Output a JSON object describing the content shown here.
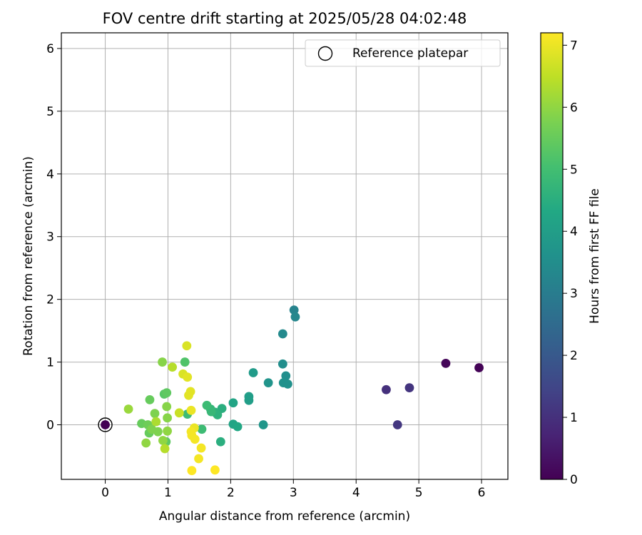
{
  "chart_data": {
    "type": "scatter",
    "title": "FOV centre drift starting at 2025/05/28 04:02:48",
    "xlabel": "Angular distance from reference (arcmin)",
    "ylabel": "Rotation from reference (arcmin)",
    "xlim": [
      -0.7,
      6.42
    ],
    "ylim": [
      -0.87,
      6.25
    ],
    "xticks": [
      0,
      1,
      2,
      3,
      4,
      5,
      6
    ],
    "yticks": [
      0,
      1,
      2,
      3,
      4,
      5,
      6
    ],
    "grid": true,
    "legend": {
      "position": "top-right",
      "entries": [
        "Reference platepar"
      ]
    },
    "reference_point": {
      "x": 0,
      "y": 0
    },
    "colorbar": {
      "label": "Hours from first FF file",
      "range": [
        0,
        7.2
      ],
      "ticks": [
        0,
        1,
        2,
        3,
        4,
        5,
        6,
        7
      ],
      "colormap": "viridis"
    },
    "points": [
      {
        "x": 0.0,
        "y": 0.0,
        "h": 0.0
      },
      {
        "x": 5.43,
        "y": 0.98,
        "h": 0.1
      },
      {
        "x": 5.96,
        "y": 0.91,
        "h": 0.05
      },
      {
        "x": 4.85,
        "y": 0.59,
        "h": 1.1
      },
      {
        "x": 4.48,
        "y": 0.56,
        "h": 1.0
      },
      {
        "x": 4.66,
        "y": 0.0,
        "h": 1.15
      },
      {
        "x": 3.01,
        "y": 1.83,
        "h": 3.2
      },
      {
        "x": 3.03,
        "y": 1.72,
        "h": 3.3
      },
      {
        "x": 2.83,
        "y": 1.45,
        "h": 3.4
      },
      {
        "x": 2.83,
        "y": 0.97,
        "h": 3.5
      },
      {
        "x": 2.88,
        "y": 0.78,
        "h": 3.5
      },
      {
        "x": 2.84,
        "y": 0.67,
        "h": 3.6
      },
      {
        "x": 2.91,
        "y": 0.65,
        "h": 3.6
      },
      {
        "x": 2.6,
        "y": 0.67,
        "h": 3.7
      },
      {
        "x": 2.52,
        "y": 0.0,
        "h": 3.75
      },
      {
        "x": 2.36,
        "y": 0.83,
        "h": 3.9
      },
      {
        "x": 2.29,
        "y": 0.45,
        "h": 4.0
      },
      {
        "x": 2.29,
        "y": 0.39,
        "h": 4.0
      },
      {
        "x": 2.04,
        "y": 0.35,
        "h": 4.2
      },
      {
        "x": 2.04,
        "y": 0.01,
        "h": 4.2
      },
      {
        "x": 2.11,
        "y": -0.03,
        "h": 4.3
      },
      {
        "x": 1.86,
        "y": 0.26,
        "h": 4.5
      },
      {
        "x": 1.84,
        "y": -0.27,
        "h": 4.5
      },
      {
        "x": 1.79,
        "y": 0.16,
        "h": 4.6
      },
      {
        "x": 1.75,
        "y": 0.2,
        "h": 4.6
      },
      {
        "x": 1.68,
        "y": 0.25,
        "h": 4.7
      },
      {
        "x": 1.69,
        "y": 0.21,
        "h": 4.8
      },
      {
        "x": 1.62,
        "y": 0.31,
        "h": 4.9
      },
      {
        "x": 1.54,
        "y": -0.07,
        "h": 4.9
      },
      {
        "x": 1.31,
        "y": 0.17,
        "h": 4.9
      },
      {
        "x": 1.27,
        "y": 1.0,
        "h": 5.2
      },
      {
        "x": 0.94,
        "y": 0.49,
        "h": 5.3
      },
      {
        "x": 0.98,
        "y": 0.51,
        "h": 5.4
      },
      {
        "x": 0.97,
        "y": -0.27,
        "h": 5.4
      },
      {
        "x": 0.71,
        "y": 0.4,
        "h": 5.5
      },
      {
        "x": 0.7,
        "y": -0.13,
        "h": 5.5
      },
      {
        "x": 0.58,
        "y": 0.02,
        "h": 5.5
      },
      {
        "x": 0.68,
        "y": 0.0,
        "h": 5.6
      },
      {
        "x": 0.79,
        "y": 0.18,
        "h": 5.8
      },
      {
        "x": 0.74,
        "y": -0.07,
        "h": 5.8
      },
      {
        "x": 0.84,
        "y": -0.11,
        "h": 5.8
      },
      {
        "x": 0.98,
        "y": 0.29,
        "h": 5.9
      },
      {
        "x": 0.99,
        "y": 0.11,
        "h": 5.9
      },
      {
        "x": 0.91,
        "y": 1.0,
        "h": 5.9
      },
      {
        "x": 0.92,
        "y": -0.25,
        "h": 6.0
      },
      {
        "x": 0.99,
        "y": -0.1,
        "h": 6.0
      },
      {
        "x": 0.65,
        "y": -0.29,
        "h": 6.0
      },
      {
        "x": 0.37,
        "y": 0.25,
        "h": 6.1
      },
      {
        "x": 0.81,
        "y": 0.05,
        "h": 6.3
      },
      {
        "x": 0.95,
        "y": -0.38,
        "h": 6.4
      },
      {
        "x": 1.07,
        "y": 0.92,
        "h": 6.4
      },
      {
        "x": 1.18,
        "y": 0.19,
        "h": 6.6
      },
      {
        "x": 1.3,
        "y": 1.26,
        "h": 6.8
      },
      {
        "x": 1.24,
        "y": 0.81,
        "h": 6.8
      },
      {
        "x": 1.31,
        "y": 0.76,
        "h": 6.9
      },
      {
        "x": 1.36,
        "y": 0.53,
        "h": 6.9
      },
      {
        "x": 1.33,
        "y": 0.47,
        "h": 6.9
      },
      {
        "x": 1.37,
        "y": 0.23,
        "h": 7.0
      },
      {
        "x": 1.42,
        "y": -0.05,
        "h": 7.0
      },
      {
        "x": 1.37,
        "y": -0.11,
        "h": 7.1
      },
      {
        "x": 1.38,
        "y": -0.17,
        "h": 7.1
      },
      {
        "x": 1.43,
        "y": -0.23,
        "h": 7.1
      },
      {
        "x": 1.53,
        "y": -0.37,
        "h": 7.1
      },
      {
        "x": 1.49,
        "y": -0.54,
        "h": 7.1
      },
      {
        "x": 1.38,
        "y": -0.73,
        "h": 7.2
      },
      {
        "x": 1.75,
        "y": -0.72,
        "h": 7.2
      }
    ]
  }
}
